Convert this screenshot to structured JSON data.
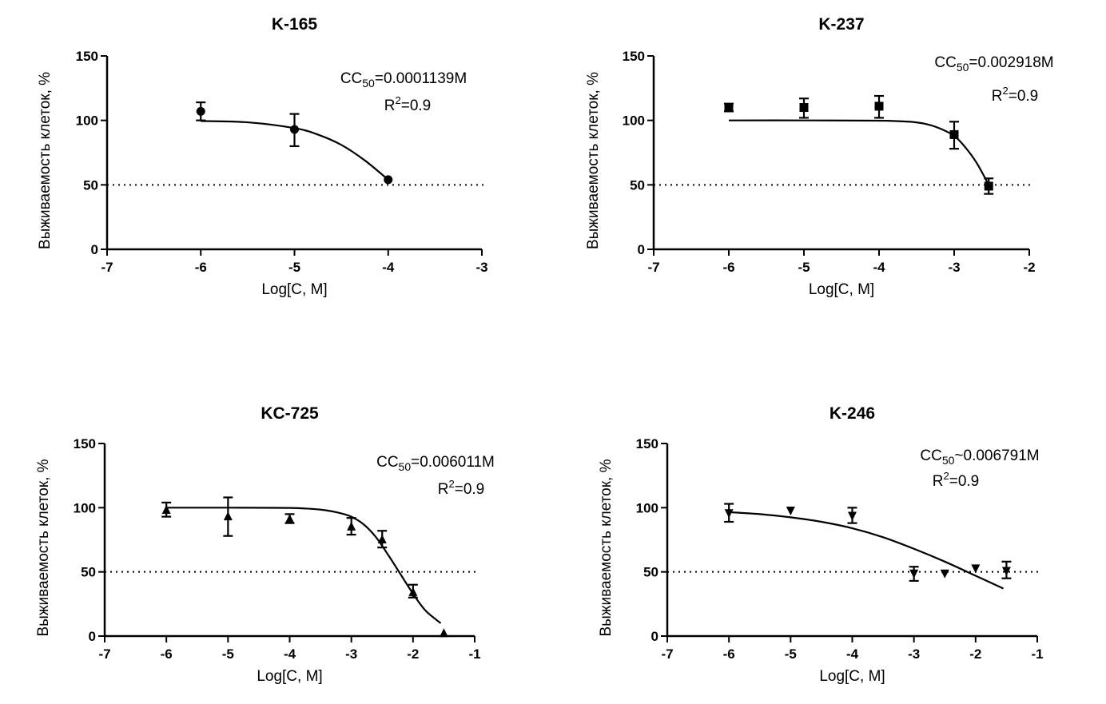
{
  "chart_data": [
    {
      "type": "scatter",
      "title": "K-165",
      "xlabel": "Log[C, M]",
      "ylabel": "Выживаемость клеток, %",
      "xlim": [
        -7,
        -3
      ],
      "ylim": [
        0,
        150
      ],
      "xticks": [
        -7,
        -6,
        -5,
        -4,
        -3
      ],
      "xtick_labels": [
        "-7",
        "-6",
        "-5",
        "-4",
        "-3"
      ],
      "yticks": [
        0,
        50,
        100,
        150
      ],
      "ytick_labels": [
        "0",
        "50",
        "100",
        "150"
      ],
      "marker": "circle",
      "reference_line": 50,
      "annotation_cc50": {
        "prefix": "CC",
        "sub": "50",
        "suffix": "=0.0001139M"
      },
      "annotation_r2": {
        "prefix": "R",
        "sup": "2",
        "suffix": "=0.9"
      },
      "points": [
        {
          "x": -6,
          "y": 107,
          "err_low": 100,
          "err_high": 114
        },
        {
          "x": -5,
          "y": 93,
          "err_low": 80,
          "err_high": 105
        },
        {
          "x": -4,
          "y": 54,
          "err_low": 54,
          "err_high": 54
        }
      ],
      "fit": {
        "x": [
          -6,
          -5.5,
          -5,
          -4.75,
          -4.5,
          -4.25,
          -4
        ],
        "y": [
          99.5,
          98.5,
          94,
          89,
          81,
          69,
          54
        ]
      }
    },
    {
      "type": "scatter",
      "title": "K-237",
      "xlabel": "Log[C, M]",
      "ylabel": "Выживаемость клеток, %",
      "xlim": [
        -7,
        -2
      ],
      "ylim": [
        0,
        150
      ],
      "xticks": [
        -7,
        -6,
        -5,
        -4,
        -3,
        -2
      ],
      "xtick_labels": [
        "-7",
        "-6",
        "-5",
        "-4",
        "-3",
        "-2"
      ],
      "yticks": [
        0,
        50,
        100,
        150
      ],
      "ytick_labels": [
        "0",
        "50",
        "100",
        "150"
      ],
      "marker": "square",
      "reference_line": 50,
      "annotation_cc50": {
        "prefix": "CC",
        "sub": "50",
        "suffix": "=0.002918M"
      },
      "annotation_r2": {
        "prefix": "R",
        "sup": "2",
        "suffix": "=0.9"
      },
      "points": [
        {
          "x": -6,
          "y": 110,
          "err_low": 107,
          "err_high": 113
        },
        {
          "x": -5,
          "y": 110,
          "err_low": 102,
          "err_high": 117
        },
        {
          "x": -4,
          "y": 111,
          "err_low": 102,
          "err_high": 119
        },
        {
          "x": -3,
          "y": 89,
          "err_low": 78,
          "err_high": 99
        },
        {
          "x": -2.54,
          "y": 49,
          "err_low": 43,
          "err_high": 55
        }
      ],
      "fit": {
        "x": [
          -6,
          -5,
          -4,
          -3.6,
          -3.4,
          -3.2,
          -3,
          -2.85,
          -2.7,
          -2.54
        ],
        "y": [
          100,
          100,
          99.8,
          99,
          97.5,
          94,
          88,
          79,
          67,
          50
        ]
      }
    },
    {
      "type": "scatter",
      "title": "KC-725",
      "xlabel": "Log[C, M]",
      "ylabel": "Выживаемость клеток, %",
      "xlim": [
        -7,
        -1
      ],
      "ylim": [
        0,
        150
      ],
      "xticks": [
        -7,
        -6,
        -5,
        -4,
        -3,
        -2,
        -1
      ],
      "xtick_labels": [
        "-7",
        "-6",
        "-5",
        "-4",
        "-3",
        "-2",
        "-1"
      ],
      "yticks": [
        0,
        50,
        100,
        150
      ],
      "ytick_labels": [
        "0",
        "50",
        "100",
        "150"
      ],
      "marker": "triangle-up",
      "reference_line": 50,
      "annotation_cc50": {
        "prefix": "CC",
        "sub": "50",
        "suffix": "=0.006011M"
      },
      "annotation_r2": {
        "prefix": "R",
        "sup": "2",
        "suffix": "=0.9"
      },
      "points": [
        {
          "x": -6,
          "y": 98,
          "err_low": 93,
          "err_high": 104
        },
        {
          "x": -5,
          "y": 93,
          "err_low": 78,
          "err_high": 108
        },
        {
          "x": -4,
          "y": 91,
          "err_low": 88,
          "err_high": 95
        },
        {
          "x": -3,
          "y": 85,
          "err_low": 79,
          "err_high": 92
        },
        {
          "x": -2.5,
          "y": 75,
          "err_low": 69,
          "err_high": 82
        },
        {
          "x": -2,
          "y": 34,
          "err_low": 30,
          "err_high": 40
        },
        {
          "x": -1.5,
          "y": 2,
          "err_low": 2,
          "err_high": 2
        }
      ],
      "fit": {
        "x": [
          -6,
          -5,
          -4,
          -3.5,
          -3.2,
          -3,
          -2.8,
          -2.6,
          -2.4,
          -2.2,
          -2,
          -1.8,
          -1.55
        ],
        "y": [
          100,
          100,
          99.8,
          98.5,
          96,
          93,
          87,
          77,
          63,
          48,
          33,
          20,
          10
        ]
      }
    },
    {
      "type": "scatter",
      "title": "K-246",
      "xlabel": "Log[C, M]",
      "ylabel": "Выживаемость клеток, %",
      "xlim": [
        -7,
        -1
      ],
      "ylim": [
        0,
        150
      ],
      "xticks": [
        -7,
        -6,
        -5,
        -4,
        -3,
        -2,
        -1
      ],
      "xtick_labels": [
        "-7",
        "-6",
        "-5",
        "-4",
        "-3",
        "-2",
        "-1"
      ],
      "yticks": [
        0,
        50,
        100,
        150
      ],
      "ytick_labels": [
        "0",
        "50",
        "100",
        "150"
      ],
      "marker": "triangle-down",
      "reference_line": 50,
      "annotation_cc50": {
        "prefix": "CC",
        "sub": "50",
        "suffix": "~0.006791M"
      },
      "annotation_r2": {
        "prefix": "R",
        "sup": "2",
        "suffix": "=0.9"
      },
      "points": [
        {
          "x": -6,
          "y": 96,
          "err_low": 89,
          "err_high": 103
        },
        {
          "x": -5,
          "y": 98,
          "err_low": 98,
          "err_high": 98
        },
        {
          "x": -4,
          "y": 94,
          "err_low": 88,
          "err_high": 100
        },
        {
          "x": -3,
          "y": 49,
          "err_low": 43,
          "err_high": 54
        },
        {
          "x": -2.5,
          "y": 49,
          "err_low": 49,
          "err_high": 49
        },
        {
          "x": -2,
          "y": 53,
          "err_low": 53,
          "err_high": 53
        },
        {
          "x": -1.5,
          "y": 51,
          "err_low": 45,
          "err_high": 58
        }
      ],
      "fit": {
        "x": [
          -6,
          -5.5,
          -5,
          -4.5,
          -4,
          -3.5,
          -3,
          -2.5,
          -2,
          -1.55
        ],
        "y": [
          96.5,
          95,
          92.5,
          89,
          84,
          77,
          68,
          58,
          47,
          37
        ]
      }
    }
  ]
}
